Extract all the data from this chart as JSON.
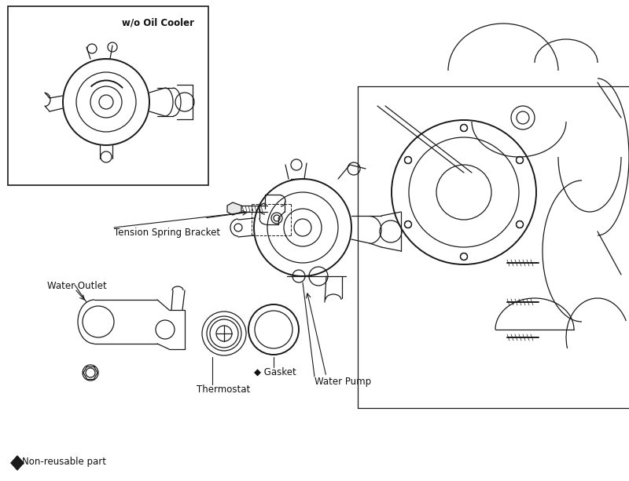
{
  "background_color": "#ffffff",
  "line_color": "#1a1a1a",
  "text_color": "#111111",
  "figsize": [
    8.0,
    6.13
  ],
  "dpi": 100,
  "labels": {
    "wo_oil_cooler": "w/o Oil Cooler",
    "tension_spring_bracket": "Tension Spring Bracket",
    "water_outlet": "Water Outlet",
    "gasket": "◆ Gasket",
    "thermostat": "Thermostat",
    "water_pump": "Water Pump",
    "non_reusable": "Non-reusable part"
  }
}
